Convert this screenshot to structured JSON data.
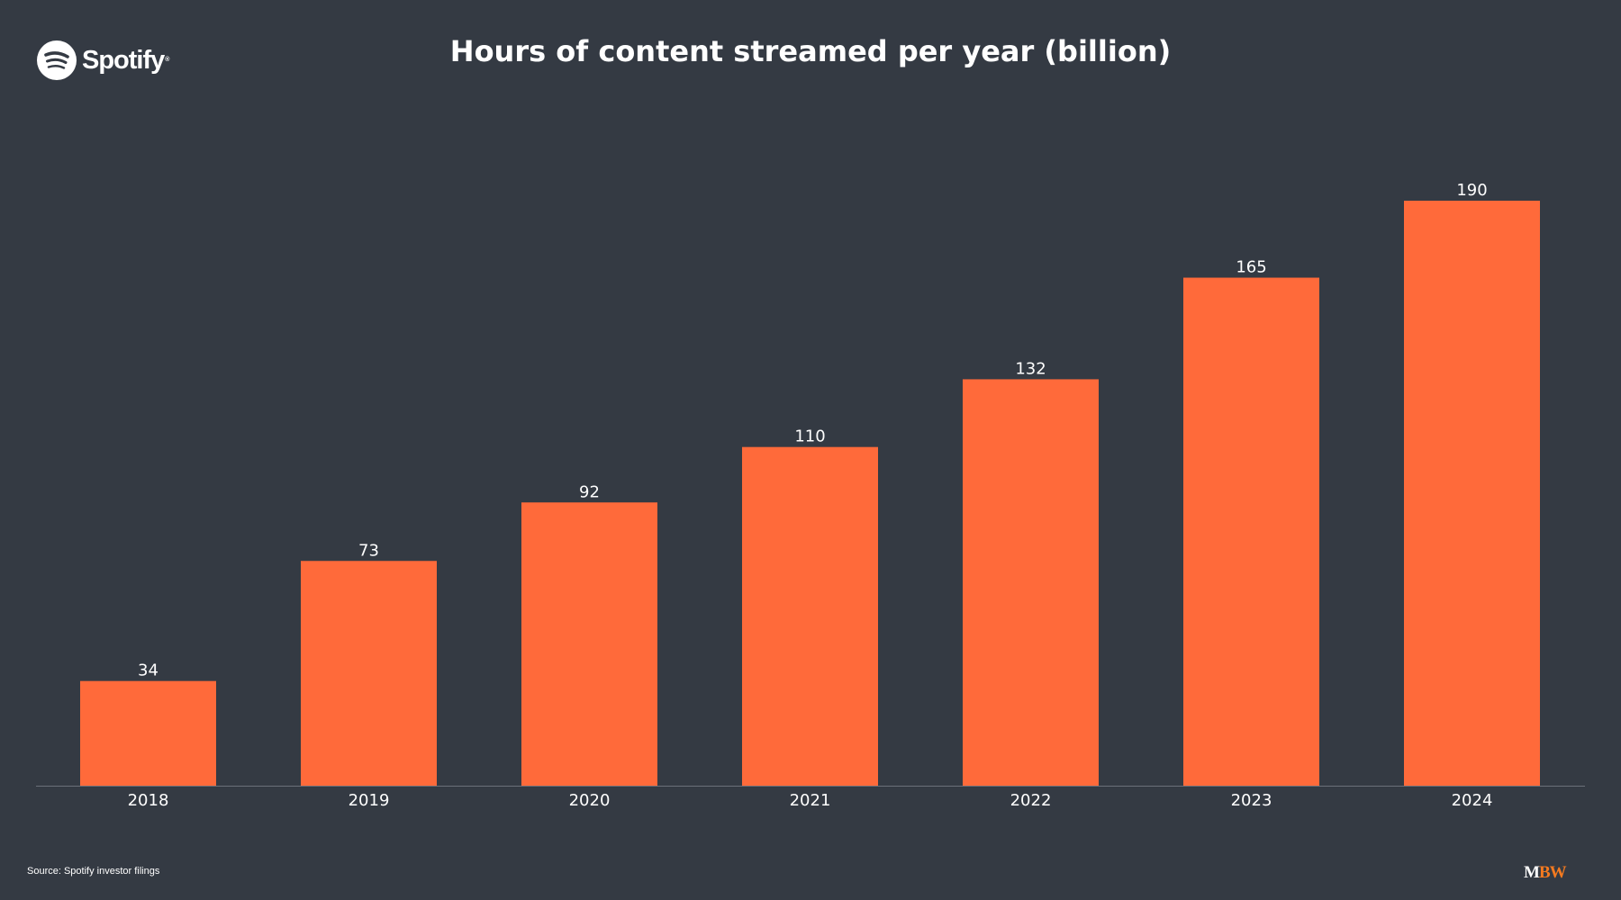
{
  "brand": {
    "name": "Spotify",
    "registered_mark": "®"
  },
  "source_note": "Source: Spotify investor filings",
  "footer_logo": {
    "m": "M",
    "bw": "BW"
  },
  "colors": {
    "background": "#343a43",
    "bar": "#ff6a3a",
    "text": "#ffffff",
    "axis": "#6b7079",
    "mbw_accent": "#f47a20"
  },
  "chart_data": {
    "type": "bar",
    "title": "Hours of content streamed per year (billion)",
    "xlabel": "",
    "ylabel": "",
    "categories": [
      "2018",
      "2019",
      "2020",
      "2021",
      "2022",
      "2023",
      "2024"
    ],
    "values": [
      34,
      73,
      92,
      110,
      132,
      165,
      190
    ],
    "data_labels": [
      "34",
      "73",
      "92",
      "110",
      "132",
      "165",
      "190"
    ],
    "ylim": [
      0,
      190
    ],
    "grid": false,
    "legend": "none"
  }
}
